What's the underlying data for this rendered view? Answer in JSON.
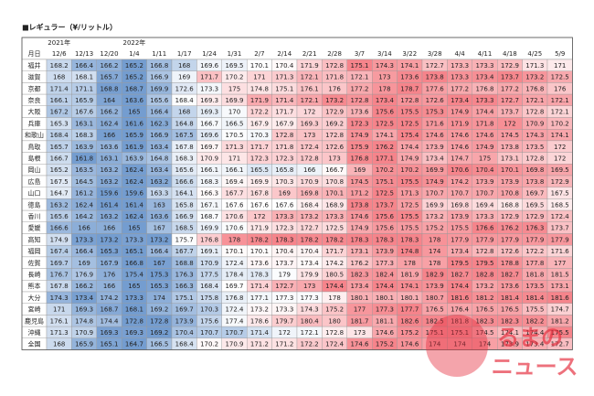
{
  "title": "■レギュラー（¥/リットル）",
  "header": {
    "years": [
      "2021年",
      "2022年"
    ],
    "label": "月日",
    "dates": [
      "12/6",
      "12/13",
      "12/20",
      "1/4",
      "1/11",
      "1/17",
      "1/24",
      "1/31",
      "2/7",
      "2/14",
      "2/21",
      "2/28",
      "3/7",
      "3/14",
      "3/22",
      "3/28",
      "4/4",
      "4/11",
      "4/18",
      "4/25",
      "5/9"
    ]
  },
  "table": {
    "rows": [
      {
        "name": "福井",
        "values": [
          168.2,
          166.4,
          166.2,
          165.2,
          166.8,
          168.0,
          169.6,
          169.5,
          170.1,
          170.4,
          171.9,
          172.8,
          175.1,
          174.3,
          174.1,
          172.7,
          173.3,
          173.3,
          172.9,
          171.3,
          171.0
        ]
      },
      {
        "name": "滋賀",
        "values": [
          168.0,
          168.1,
          165.7,
          165.2,
          166.9,
          169.0,
          171.7,
          170.2,
          171.0,
          171.3,
          172.1,
          171.8,
          172.1,
          173.0,
          173.6,
          173.8,
          173.3,
          173.4,
          173.7,
          173.2,
          172.5
        ]
      },
      {
        "name": "京都",
        "values": [
          171.4,
          171.1,
          168.8,
          168.7,
          169.9,
          172.6,
          173.3,
          175.0,
          174.8,
          175.1,
          176.1,
          176.0,
          177.2,
          178.0,
          178.7,
          177.6,
          177.2,
          176.8,
          177.2,
          176.8,
          176.0
        ]
      },
      {
        "name": "奈良",
        "values": [
          166.1,
          165.9,
          164.0,
          163.6,
          165.6,
          168.4,
          169.3,
          169.9,
          171.9,
          171.4,
          172.1,
          173.2,
          172.8,
          173.4,
          172.8,
          172.6,
          173.4,
          173.3,
          172.7,
          172.1,
          172.1
        ]
      },
      {
        "name": "大阪",
        "values": [
          167.2,
          167.6,
          166.2,
          165.0,
          166.4,
          168.0,
          169.3,
          170.0,
          172.2,
          171.7,
          172.0,
          172.9,
          173.6,
          175.6,
          175.5,
          175.3,
          174.9,
          174.4,
          173.7,
          172.8,
          172.1
        ]
      },
      {
        "name": "兵庫",
        "values": [
          165.3,
          163.1,
          162.4,
          161.6,
          162.3,
          164.8,
          166.7,
          166.5,
          167.9,
          167.9,
          169.3,
          169.2,
          172.3,
          172.5,
          172.5,
          171.6,
          171.9,
          171.8,
          172.0,
          170.9,
          170.2
        ]
      },
      {
        "name": "和歌山",
        "values": [
          168.4,
          168.3,
          166.0,
          165.9,
          166.9,
          167.5,
          169.6,
          170.5,
          170.3,
          172.8,
          173.0,
          172.8,
          174.9,
          174.1,
          175.4,
          174.6,
          174.6,
          174.6,
          174.5,
          174.3,
          174.1
        ]
      },
      {
        "name": "鳥取",
        "values": [
          165.7,
          163.9,
          163.6,
          161.9,
          163.4,
          167.8,
          169.7,
          171.3,
          171.7,
          171.8,
          172.4,
          172.6,
          175.9,
          176.2,
          174.4,
          173.9,
          174.6,
          174.9,
          173.8,
          173.5,
          172.0
        ]
      },
      {
        "name": "島根",
        "values": [
          166.7,
          161.8,
          163.1,
          163.9,
          164.8,
          168.3,
          170.9,
          171.0,
          172.3,
          172.3,
          172.8,
          173.0,
          176.8,
          177.1,
          174.9,
          173.4,
          174.7,
          175.0,
          173.1,
          172.8,
          172.0
        ]
      },
      {
        "name": "岡山",
        "values": [
          165.2,
          163.5,
          163.2,
          162.4,
          163.4,
          165.6,
          166.1,
          166.1,
          165.5,
          165.8,
          166.0,
          166.7,
          169.0,
          170.2,
          170.2,
          169.9,
          170.6,
          170.4,
          170.1,
          169.8,
          169.5
        ]
      },
      {
        "name": "広島",
        "values": [
          167.5,
          164.5,
          163.2,
          162.4,
          163.2,
          166.6,
          168.3,
          169.4,
          169.9,
          170.3,
          170.9,
          170.8,
          174.5,
          175.1,
          175.5,
          174.9,
          174.2,
          173.9,
          173.9,
          173.8,
          172.9
        ]
      },
      {
        "name": "山口",
        "values": [
          164.7,
          161.2,
          159.6,
          159.6,
          163.3,
          164.1,
          166.3,
          167.7,
          167.8,
          169.0,
          169.8,
          170.1,
          171.2,
          172.5,
          171.3,
          170.7,
          170.7,
          170.7,
          170.8,
          169.7,
          167.5
        ]
      },
      {
        "name": "徳島",
        "values": [
          163.2,
          162.4,
          161.4,
          161.4,
          163.0,
          165.8,
          167.1,
          167.6,
          167.6,
          167.6,
          168.4,
          168.9,
          173.8,
          173.7,
          172.5,
          169.9,
          169.8,
          169.4,
          168.8,
          169.5,
          168.5
        ]
      },
      {
        "name": "香川",
        "values": [
          165.6,
          164.2,
          163.2,
          162.4,
          163.6,
          166.9,
          168.7,
          170.6,
          172.0,
          173.3,
          173.2,
          173.3,
          174.6,
          175.6,
          175.5,
          173.2,
          173.9,
          173.3,
          172.9,
          172.9,
          172.4
        ]
      },
      {
        "name": "愛媛",
        "values": [
          166.6,
          166.0,
          166.0,
          165.0,
          167.0,
          168.5,
          169.9,
          170.6,
          171.9,
          172.3,
          172.7,
          172.5,
          174.9,
          175.6,
          175.5,
          175.2,
          175.5,
          176.6,
          176.2,
          176.3,
          173.7
        ]
      },
      {
        "name": "高知",
        "values": [
          174.9,
          173.3,
          173.2,
          173.3,
          173.2,
          175.7,
          176.8,
          178.0,
          178.2,
          178.3,
          178.2,
          178.2,
          178.3,
          178.3,
          178.3,
          178.0,
          177.9,
          177.9,
          177.9,
          177.9,
          177.9
        ]
      },
      {
        "name": "福岡",
        "values": [
          167.4,
          166.4,
          165.3,
          165.1,
          166.4,
          167.7,
          169.1,
          170.1,
          170.1,
          170.4,
          170.4,
          171.7,
          173.1,
          173.9,
          174.8,
          174.0,
          173.4,
          172.8,
          172.6,
          172.2,
          171.6
        ]
      },
      {
        "name": "佐賀",
        "values": [
          169.7,
          169.0,
          167.9,
          166.8,
          167.0,
          168.8,
          170.9,
          172.4,
          173.6,
          173.7,
          173.4,
          174.2,
          176.2,
          177.3,
          178.0,
          178.0,
          179.5,
          179.5,
          178.8,
          177.8,
          177.0
        ]
      },
      {
        "name": "長崎",
        "values": [
          176.7,
          176.9,
          176.0,
          175.4,
          175.3,
          176.3,
          177.5,
          178.4,
          178.3,
          179.0,
          179.9,
          180.5,
          182.3,
          182.4,
          181.9,
          182.9,
          182.7,
          182.8,
          182.7,
          181.8,
          181.5
        ]
      },
      {
        "name": "熊本",
        "values": [
          167.8,
          166.2,
          166.0,
          165.0,
          165.3,
          166.3,
          168.4,
          169.7,
          171.4,
          172.7,
          173.0,
          174.4,
          173.4,
          174.4,
          174.1,
          173.9,
          174.4,
          173.2,
          173.6,
          173.5,
          173.1
        ]
      },
      {
        "name": "大分",
        "values": [
          174.3,
          173.4,
          174.2,
          173.3,
          174.0,
          175.1,
          175.8,
          176.8,
          177.1,
          177.3,
          177.3,
          178.0,
          180.1,
          180.1,
          180.1,
          180.7,
          181.6,
          181.2,
          181.4,
          181.4,
          181.6
        ]
      },
      {
        "name": "宮崎",
        "values": [
          171.0,
          169.3,
          168.7,
          168.1,
          169.2,
          169.7,
          170.3,
          172.4,
          173.2,
          173.3,
          174.3,
          175.2,
          177.0,
          177.3,
          177.7,
          176.5,
          176.4,
          176.5,
          176.5,
          175.5,
          174.7
        ]
      },
      {
        "name": "鹿児島",
        "values": [
          176.1,
          174.8,
          174.4,
          172.8,
          172.8,
          173.9,
          175.6,
          177.4,
          178.6,
          179.7,
          180.4,
          180.0,
          181.7,
          181.1,
          182.6,
          182.5,
          181.8,
          182.3,
          182.3,
          182.2,
          181.2
        ]
      },
      {
        "name": "沖縄",
        "values": [
          171.3,
          170.9,
          169.3,
          169.3,
          169.2,
          170.4,
          170.7,
          170.7,
          171.4,
          172.0,
          172.1,
          172.8,
          173.0,
          174.6,
          175.2,
          175.1,
          175.1,
          174.5,
          174.1,
          174.4,
          175.5
        ]
      },
      {
        "name": "全国",
        "values": [
          168.0,
          165.9,
          165.1,
          164.7,
          166.5,
          168.4,
          170.2,
          170.9,
          171.2,
          171.2,
          172.2,
          172.4,
          174.6,
          175.2,
          174.6,
          174.0,
          174.0,
          174.0,
          173.9,
          173.4,
          172.7
        ]
      }
    ]
  },
  "logo": {
    "line1": "るまの",
    "line2": "ニュース"
  }
}
